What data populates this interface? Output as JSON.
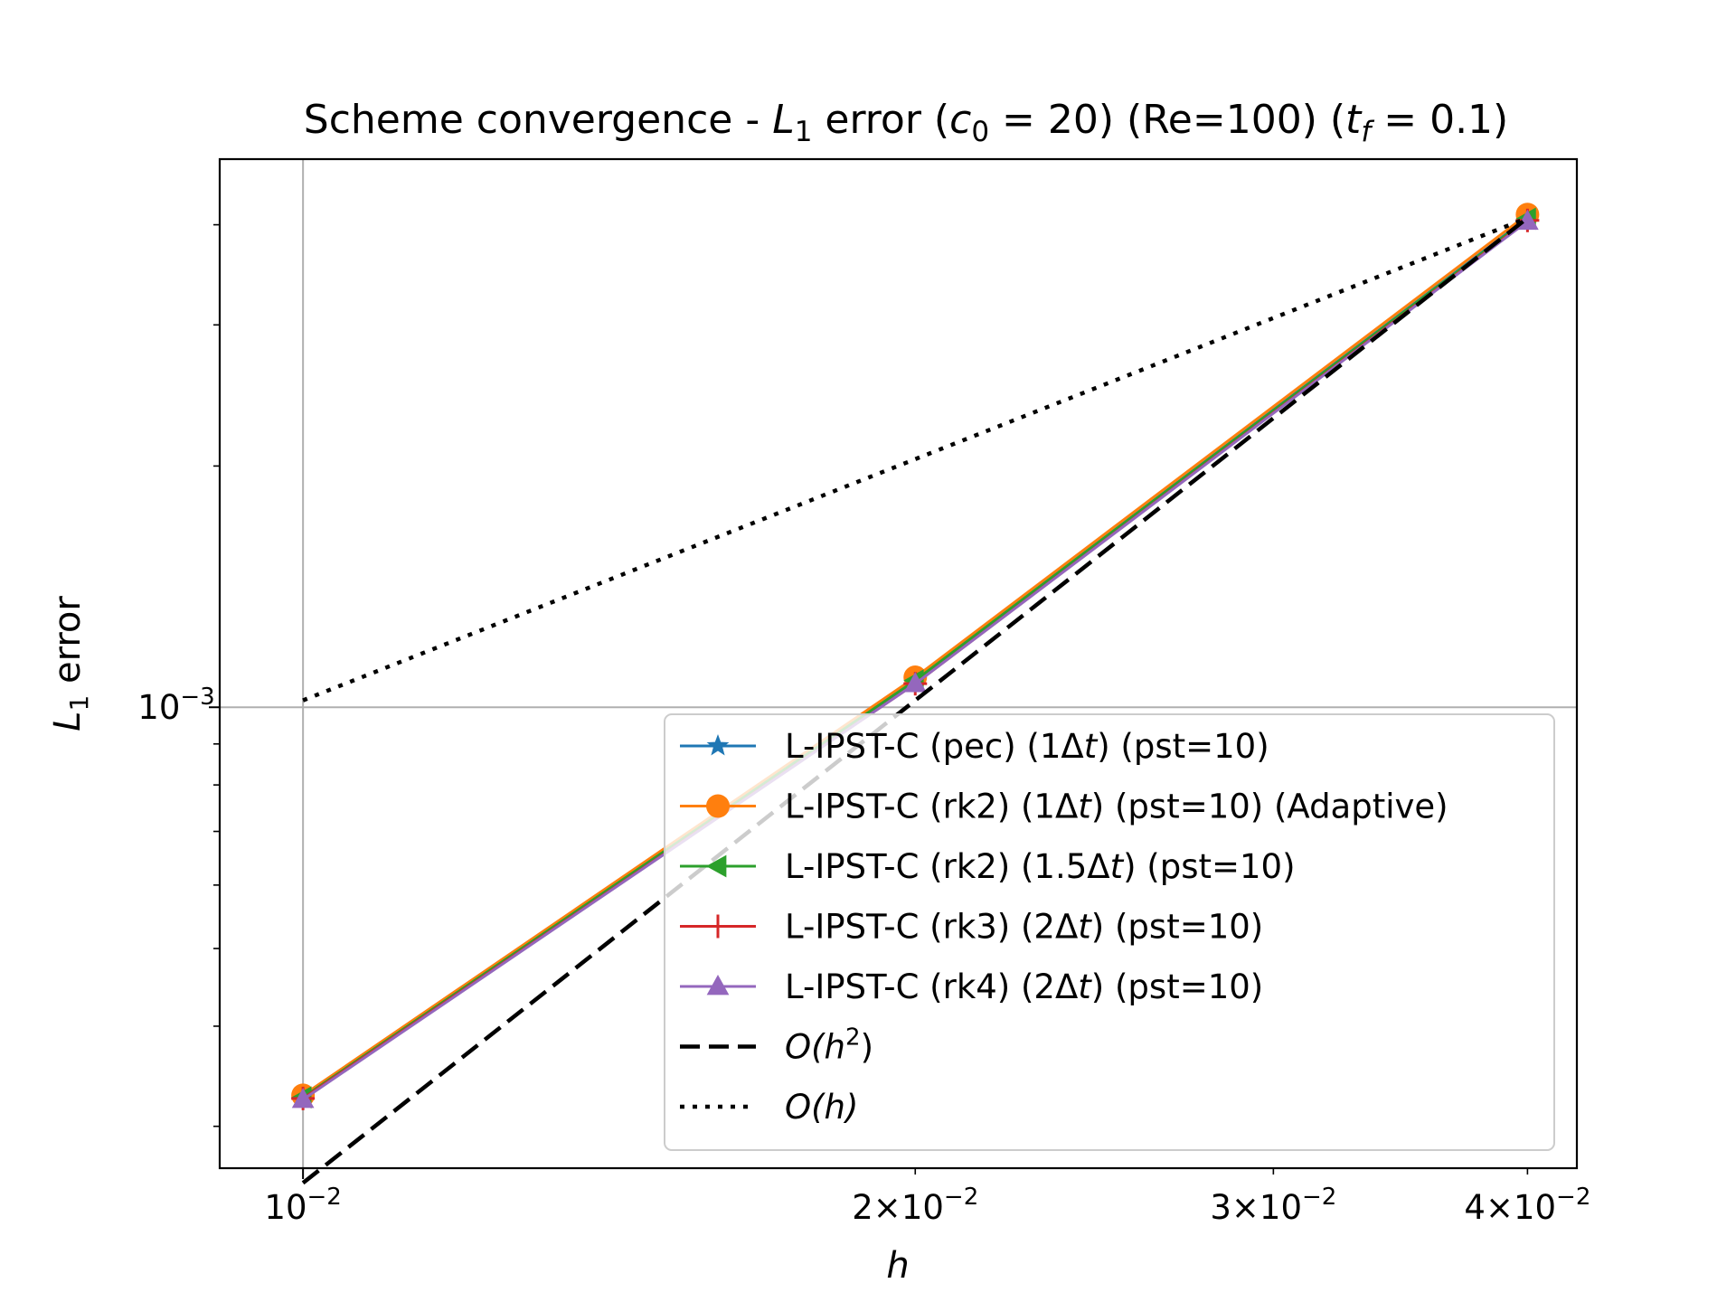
{
  "chart_data": {
    "type": "line",
    "title": {
      "prefix": "Scheme convergence - ",
      "l_sym": "L",
      "l_sub": "1",
      "mid1": " error (",
      "c_sym": "c",
      "c_sub": "0",
      "c_rest": " = 20)",
      "mid2": " (Re=100) (",
      "t_sym": "t",
      "t_sub": "f",
      "t_rest": " = 0.1)"
    },
    "xlabel": "h",
    "ylabel": {
      "sym": "L",
      "sub": "1",
      "rest": " error"
    },
    "xscale": "log",
    "yscale": "log",
    "xlim": [
      0.0091,
      0.0423
    ],
    "ylim": [
      0.000266,
      0.00483
    ],
    "xticks": [
      {
        "value": 0.01,
        "mant": "",
        "exp": "−2"
      },
      {
        "value": 0.02,
        "mant": "2",
        "exp": "−2"
      },
      {
        "value": 0.03,
        "mant": "3",
        "exp": "−2"
      },
      {
        "value": 0.04,
        "mant": "4",
        "exp": "−2"
      }
    ],
    "yticks": [
      {
        "value": 0.001,
        "base": "10",
        "exp": "−3"
      }
    ],
    "grid": true,
    "legend_position": "lower right",
    "series": [
      {
        "name": "L-IPST-C (pec) (1Δt) (pst=10)",
        "name_parts": [
          "L-IPST-C (pec) (1Δ",
          "t",
          ") (pst=10)"
        ],
        "color": "#1f77b4",
        "marker": "star",
        "dash": "solid",
        "x": [
          0.01,
          0.02,
          0.04
        ],
        "y": [
          0.000326,
          0.00108,
          0.00408
        ]
      },
      {
        "name": "L-IPST-C (rk2) (1Δt) (pst=10) (Adaptive)",
        "name_parts": [
          "L-IPST-C (rk2) (1Δ",
          "t",
          ") (pst=10) (Adaptive)"
        ],
        "color": "#ff7f0e",
        "marker": "circle",
        "dash": "solid",
        "x": [
          0.01,
          0.02,
          0.04
        ],
        "y": [
          0.000328,
          0.00109,
          0.00412
        ]
      },
      {
        "name": "L-IPST-C (rk2) (1.5Δt) (pst=10)",
        "name_parts": [
          "L-IPST-C (rk2) (1.5Δ",
          "t",
          ") (pst=10)"
        ],
        "color": "#2ca02c",
        "marker": "triangle-left",
        "dash": "solid",
        "x": [
          0.01,
          0.02,
          0.04
        ],
        "y": [
          0.000326,
          0.00108,
          0.00407
        ]
      },
      {
        "name": "L-IPST-C (rk3) (2Δt) (pst=10)",
        "name_parts": [
          "L-IPST-C (rk3) (2Δ",
          "t",
          ") (pst=10)"
        ],
        "color": "#d62728",
        "marker": "plus",
        "dash": "solid",
        "x": [
          0.01,
          0.02,
          0.04
        ],
        "y": [
          0.000325,
          0.00107,
          0.00405
        ]
      },
      {
        "name": "L-IPST-C (rk4) (2Δt) (pst=10)",
        "name_parts": [
          "L-IPST-C (rk4) (2Δ",
          "t",
          ") (pst=10)"
        ],
        "color": "#9467bd",
        "marker": "triangle-up",
        "dash": "solid",
        "x": [
          0.01,
          0.02,
          0.04
        ],
        "y": [
          0.000324,
          0.00107,
          0.00404
        ]
      },
      {
        "name": "O(h²)",
        "name_parts": [
          "O(h",
          "2",
          ")"
        ],
        "color": "#000000",
        "marker": "none",
        "dash": "dashed",
        "x": [
          0.01,
          0.04
        ],
        "y": [
          0.000255,
          0.00408
        ]
      },
      {
        "name": "O(h)",
        "name_parts": [
          "O(h)"
        ],
        "color": "#000000",
        "marker": "none",
        "dash": "dotted",
        "x": [
          0.01,
          0.04
        ],
        "y": [
          0.00102,
          0.00408
        ]
      }
    ]
  }
}
